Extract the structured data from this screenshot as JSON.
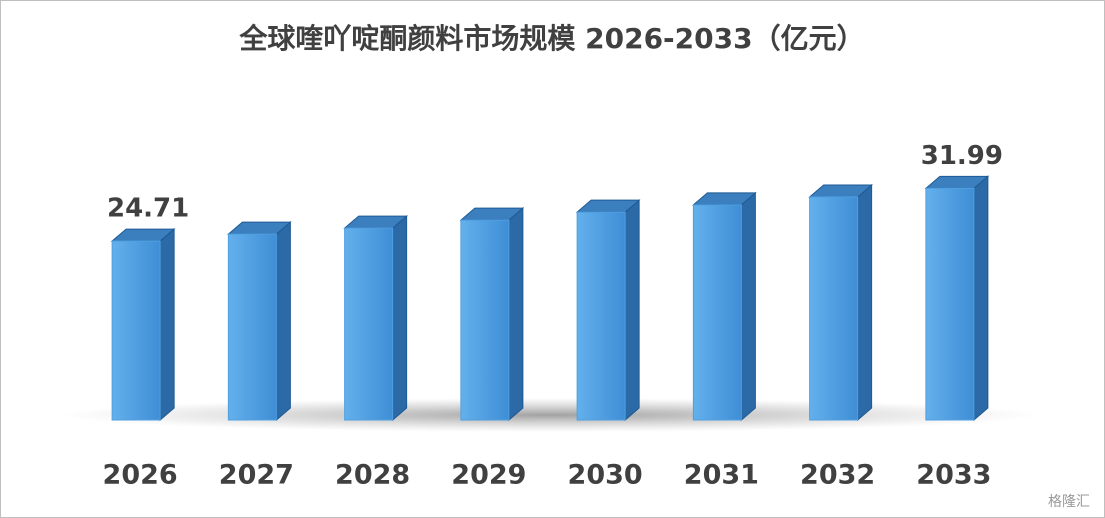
{
  "chart_data": {
    "type": "bar3d",
    "title": "全球喹吖啶酮颜料市场规模 2026-2033（亿元）",
    "categories": [
      "2026",
      "2027",
      "2028",
      "2029",
      "2030",
      "2031",
      "2032",
      "2033"
    ],
    "values": [
      24.71,
      25.67,
      26.5,
      27.6,
      28.7,
      29.7,
      30.8,
      31.99
    ],
    "value_labels": [
      "24.71",
      null,
      null,
      null,
      null,
      null,
      null,
      "31.99"
    ],
    "color": "#4f9fe0",
    "ylim": [
      0,
      58
    ],
    "watermark": "格隆汇"
  }
}
